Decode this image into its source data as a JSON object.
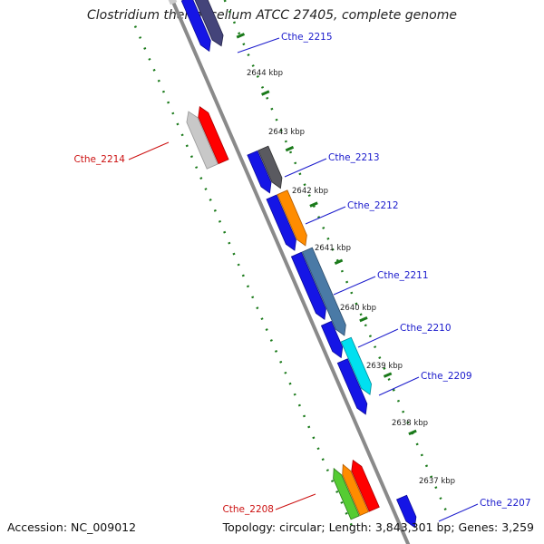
{
  "title": "Clostridium thermocellum ATCC 27405, complete genome",
  "accession": "Accession: NC_009012",
  "summary": "Topology: circular; Length: 3,843,301 bp; Genes: 3,259",
  "colors": {
    "backbone": "#8a8a8a",
    "tick": "#1a7a1a",
    "forward_label": "#1a1acc",
    "reverse_label": "#cc1111",
    "ruler_text": "#222222"
  },
  "ruler_labels": [
    {
      "text": "2644 kbp"
    },
    {
      "text": "2643 kbp"
    },
    {
      "text": "2642 kbp"
    },
    {
      "text": "2641 kbp"
    },
    {
      "text": "2640 kbp"
    },
    {
      "text": "2639 kbp"
    },
    {
      "text": "2638 kbp"
    },
    {
      "text": "2637 kbp"
    }
  ],
  "gene_labels": [
    {
      "text": "Cthe_2215",
      "strand": "forward"
    },
    {
      "text": "Cthe_2214",
      "strand": "reverse"
    },
    {
      "text": "Cthe_2213",
      "strand": "forward"
    },
    {
      "text": "Cthe_2212",
      "strand": "forward"
    },
    {
      "text": "Cthe_2211",
      "strand": "forward"
    },
    {
      "text": "Cthe_2210",
      "strand": "forward"
    },
    {
      "text": "Cthe_2209",
      "strand": "forward"
    },
    {
      "text": "Cthe_2208",
      "strand": "reverse"
    },
    {
      "text": "Cthe_2207",
      "strand": "forward"
    }
  ]
}
